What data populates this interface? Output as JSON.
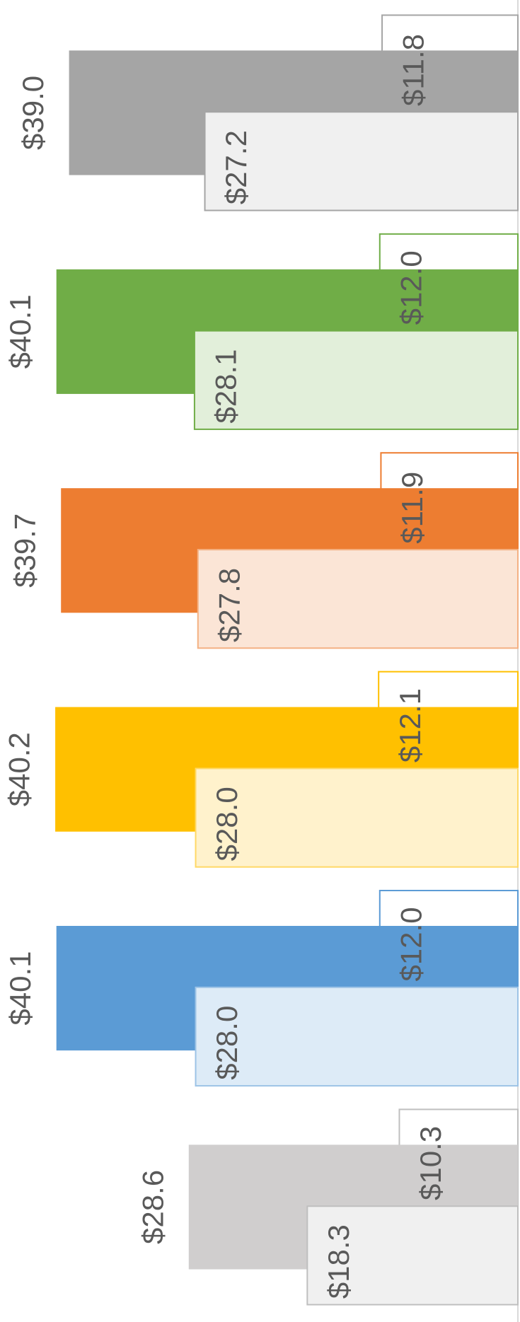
{
  "chart_data": {
    "type": "bar",
    "orientation": "horizontal",
    "direction": "right-to-left",
    "xlim": [
      0,
      45
    ],
    "series": [
      {
        "values": [
          39.0,
          40.1,
          39.7,
          40.2,
          40.1,
          28.6
        ],
        "value_labels": [
          "$39.0",
          "$40.1",
          "$39.7",
          "$40.2",
          "$40.1",
          "$28.6"
        ],
        "colors": [
          "#a5a5a5",
          "#70ad47",
          "#ed7d31",
          "#ffc000",
          "#5b9bd5",
          "#d0cece"
        ]
      },
      {
        "values": [
          11.8,
          12.0,
          11.9,
          12.1,
          12.0,
          10.3
        ],
        "value_labels": [
          "$11.8",
          "$12.0",
          "$11.9",
          "$12.1",
          "$12.0",
          "$10.3"
        ],
        "colors": [
          "#a5a5a5",
          "#70ad47",
          "#ed7d31",
          "#ffc000",
          "#5b9bd5",
          "#bfbfbf"
        ]
      },
      {
        "values": [
          27.2,
          28.1,
          27.8,
          28.0,
          28.0,
          18.3
        ],
        "value_labels": [
          "$27.2",
          "$28.1",
          "$27.8",
          "$28.0",
          "$28.0",
          "$18.3"
        ],
        "colors": [
          "#f0f0f0",
          "#e2efda",
          "#fbe5d6",
          "#fff2cc",
          "#ddebf7",
          "#f0f0f0"
        ]
      }
    ]
  }
}
